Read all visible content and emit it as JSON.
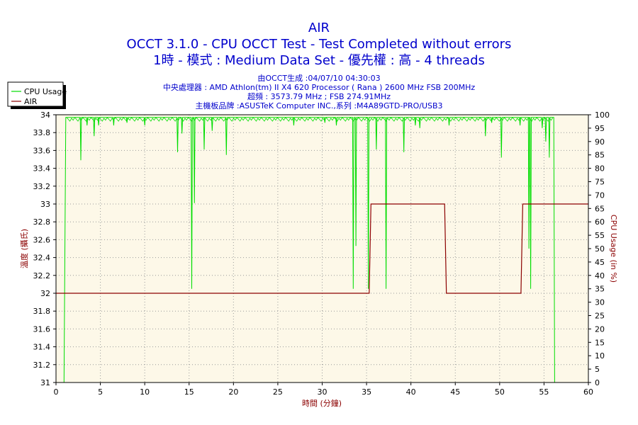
{
  "chart_data": {
    "type": "line",
    "title": "AIR",
    "subtitle_lines": [
      "OCCT 3.1.0 - CPU OCCT Test - Test Completed without errors",
      "1時 - 模式 : Medium Data Set - 優先權 : 高 - 4 threads"
    ],
    "info_lines": [
      "由OCCT生成 :04/07/10 04:30:03",
      "中央處理器 : AMD Athlon(tm) II X4 620 Processor ( Rana ) 2600 MHz FSB 200MHz",
      "超頻 : 3573.79 MHz ; FSB 274.91MHz",
      "主機板品牌 :ASUSTeK Computer INC.,系列 :M4A89GTD-PRO/USB3"
    ],
    "xlabel": "時間 (分鐘)",
    "ylabel_left": "溫度 (攝氏)",
    "ylabel_right": "CPU Usage (in %)",
    "xlim": [
      0,
      60
    ],
    "ylim_left": [
      31,
      34
    ],
    "ylim_right": [
      0,
      100
    ],
    "x_ticks": [
      0,
      5,
      10,
      15,
      20,
      25,
      30,
      35,
      40,
      45,
      50,
      55,
      60
    ],
    "y_left_ticks": [
      "31",
      "31.2",
      "31.4",
      "31.6",
      "31.8",
      "32",
      "32.2",
      "32.4",
      "32.6",
      "32.8",
      "33",
      "33.2",
      "33.4",
      "33.6",
      "33.8",
      "34"
    ],
    "y_right_ticks": [
      0,
      5,
      10,
      15,
      20,
      25,
      30,
      35,
      40,
      45,
      50,
      55,
      60,
      65,
      70,
      75,
      80,
      85,
      90,
      95,
      100
    ],
    "grid": true,
    "legend_position": "top-left",
    "series": [
      {
        "name": "CPU Usage",
        "axis": "right",
        "color": "#00dd00",
        "baseline": 99,
        "points": [
          [
            0,
            0
          ],
          [
            0.9,
            0
          ],
          [
            1.1,
            99
          ],
          [
            60,
            99
          ]
        ],
        "dips": [
          [
            2.8,
            83
          ],
          [
            3.5,
            96
          ],
          [
            4.3,
            92
          ],
          [
            4.8,
            96
          ],
          [
            6.5,
            96
          ],
          [
            8.0,
            97
          ],
          [
            10.0,
            96
          ],
          [
            13.7,
            86
          ],
          [
            14.2,
            93
          ],
          [
            15.3,
            35
          ],
          [
            15.6,
            67
          ],
          [
            16.7,
            87
          ],
          [
            17.6,
            94
          ],
          [
            19.2,
            85
          ],
          [
            26.8,
            96
          ],
          [
            30.3,
            97
          ],
          [
            31.6,
            96
          ],
          [
            33.5,
            35
          ],
          [
            33.8,
            51
          ],
          [
            35.2,
            35
          ],
          [
            36.1,
            87
          ],
          [
            37.2,
            35
          ],
          [
            39.2,
            86
          ],
          [
            40.5,
            96
          ],
          [
            41.0,
            95
          ],
          [
            44.3,
            96
          ],
          [
            48.4,
            92
          ],
          [
            49.1,
            97
          ],
          [
            50.2,
            84
          ],
          [
            52.3,
            96
          ],
          [
            53.3,
            50
          ],
          [
            53.5,
            35
          ],
          [
            54.8,
            95
          ],
          [
            55.2,
            90
          ],
          [
            55.6,
            84
          ],
          [
            56.2,
            0
          ]
        ],
        "end": [
          [
            56.2,
            0
          ],
          [
            60,
            0
          ]
        ]
      },
      {
        "name": "AIR",
        "axis": "left",
        "color": "#8b0000",
        "points": [
          [
            0,
            32
          ],
          [
            35.3,
            32
          ],
          [
            35.5,
            33
          ],
          [
            43.8,
            33
          ],
          [
            44.0,
            32
          ],
          [
            52.4,
            32
          ],
          [
            52.6,
            33
          ],
          [
            60,
            33
          ]
        ]
      }
    ]
  }
}
